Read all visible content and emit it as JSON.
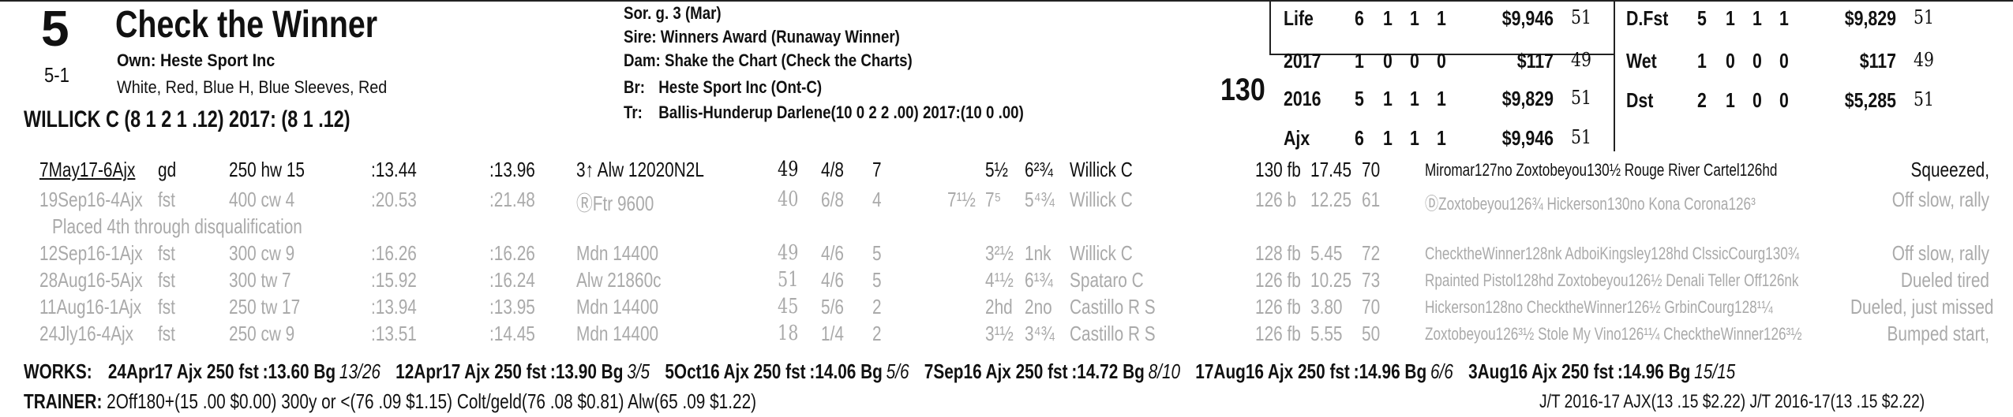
{
  "horse": {
    "program_number": "5",
    "odds": "5-1",
    "name": "Check the Winner",
    "owner": "Own: Heste Sport Inc",
    "silks": "White, Red, Blue H, Blue Sleeves, Red",
    "jockey_line": "WILLICK C (8 1 2 1 .12) 2017: (8 1 .12)"
  },
  "pedigree": {
    "sex_age": "Sor. g. 3 (Mar)",
    "sire_label": "Sire:",
    "sire": "Winners Award (Runaway Winner)",
    "dam_label": "Dam:",
    "dam": "Shake the Chart (Check the Charts)",
    "breeder_label": "Br:",
    "breeder": "Heste Sport Inc (Ont-C)",
    "trainer_label": "Tr:",
    "trainer": "Ballis-Hunderup Darlene(10 0 2 2 .00) 2017:(10 0 .00)"
  },
  "weight": "130",
  "stats_left": [
    {
      "label": "Life",
      "st": "6",
      "w": "1",
      "p": "1",
      "s": "1",
      "earn": "$9,946",
      "fig": "51"
    },
    {
      "label": "2017",
      "st": "1",
      "w": "0",
      "p": "0",
      "s": "0",
      "earn": "$117",
      "fig": "49"
    },
    {
      "label": "2016",
      "st": "5",
      "w": "1",
      "p": "1",
      "s": "1",
      "earn": "$9,829",
      "fig": "51"
    },
    {
      "label": "Ajx",
      "st": "6",
      "w": "1",
      "p": "1",
      "s": "1",
      "earn": "$9,946",
      "fig": "51"
    }
  ],
  "stats_right": [
    {
      "label": "D.Fst",
      "st": "5",
      "w": "1",
      "p": "1",
      "s": "1",
      "earn": "$9,829",
      "fig": "51"
    },
    {
      "label": "Wet",
      "st": "1",
      "w": "0",
      "p": "0",
      "s": "0",
      "earn": "$117",
      "fig": "49"
    },
    {
      "label": "Dst",
      "st": "2",
      "w": "1",
      "p": "0",
      "s": "0",
      "earn": "$5,285",
      "fig": "51"
    }
  ],
  "past_performances": [
    {
      "date": "7May17-6Ajx",
      "cond": "gd",
      "dist": "250 hw 15",
      "frac1": ":13.44",
      "frac2": ":13.96",
      "race": "3↑ Alw 12020N2L",
      "speed": "49",
      "post": "4/8",
      "start": "7",
      "call1": "5½",
      "fin": "6²¾",
      "jockey": "Willick C",
      "wt": "130 fb",
      "odds": "17.45",
      "fig": "70",
      "comp": "Miromar127no Zoxtobeyou130½ Rouge River Cartel126hd",
      "comment": "Squeezed,"
    },
    {
      "date": "19Sep16-4Ajx",
      "cond": "fst",
      "dist": "400 cw 4",
      "frac1": ":20.53",
      "frac2": ":21.48",
      "race": "ⓇFtr 9600",
      "speed": "40",
      "post": "6/8",
      "start": "4",
      "call0": "7¹½",
      "call1": "7⁵",
      "fin": "5⁴¾",
      "jockey": "Willick C",
      "wt": "126 b",
      "odds": "12.25",
      "fig": "61",
      "comp": "ⒹZoxtobeyou126¾ Hickerson130no Kona Corona126³",
      "comment": "Off slow, rally"
    },
    {
      "note": "Placed 4th through disqualification"
    },
    {
      "date": "12Sep16-1Ajx",
      "cond": "fst",
      "dist": "300 cw 9",
      "frac1": ":16.26",
      "frac2": ":16.26",
      "race": "Mdn 14400",
      "speed": "49",
      "post": "4/6",
      "start": "5",
      "call1": "3²½",
      "fin": "1nk",
      "jockey": "Willick C",
      "wt": "128 fb",
      "odds": "5.45",
      "fig": "72",
      "comp": "ChecktheWinner128nk AdboiKingsley128hd ClssicCourg130¾",
      "comment": "Off slow, rally"
    },
    {
      "date": "28Aug16-5Ajx",
      "cond": "fst",
      "dist": "300 tw 7",
      "frac1": ":15.92",
      "frac2": ":16.24",
      "race": "Alw 21860c",
      "speed": "51",
      "post": "4/6",
      "start": "5",
      "call1": "4¹½",
      "fin": "6¹¾",
      "jockey": "Spataro C",
      "wt": "126 fb",
      "odds": "10.25",
      "fig": "73",
      "comp": "Rpainted Pistol128hd Zoxtobeyou126½ Denali Teller Off126nk",
      "comment": "Dueled tired"
    },
    {
      "date": "11Aug16-1Ajx",
      "cond": "fst",
      "dist": "250 tw 17",
      "frac1": ":13.94",
      "frac2": ":13.95",
      "race": "Mdn 14400",
      "speed": "45",
      "post": "5/6",
      "start": "2",
      "call1": "2hd",
      "fin": "2no",
      "jockey": "Castillo R S",
      "wt": "126 fb",
      "odds": "3.80",
      "fig": "70",
      "comp": "Hickerson128no ChecktheWinner126½ GrbinCourg128¹¼",
      "comment": "Dueled, just missed"
    },
    {
      "date": "24Jly16-4Ajx",
      "cond": "fst",
      "dist": "250 cw 9",
      "frac1": ":13.51",
      "frac2": ":14.45",
      "race": "Mdn 14400",
      "speed": "18",
      "post": "1/4",
      "start": "2",
      "call1": "3¹½",
      "fin": "3⁴¾",
      "jockey": "Castillo R S",
      "wt": "126 fb",
      "odds": "5.55",
      "fig": "50",
      "comp": "Zoxtobeyou126³½ Stole My Vino126¹¼ ChecktheWinner126³½",
      "comment": "Bumped start,"
    }
  ],
  "works_label": "WORKS:",
  "works": [
    {
      "date": "24Apr17",
      "track": "Ajx 250 fst",
      "time": ":13.60 Bg",
      "rank": "13/26"
    },
    {
      "date": "12Apr17",
      "track": "Ajx 250 fst",
      "time": ":13.90 Bg",
      "rank": "3/5"
    },
    {
      "date": "5Oct16",
      "track": "Ajx 250 fst",
      "time": ":14.06 Bg",
      "rank": "5/6"
    },
    {
      "date": "7Sep16",
      "track": "Ajx 250 fst",
      "time": ":14.72 Bg",
      "rank": "8/10"
    },
    {
      "date": "17Aug16",
      "track": "Ajx 250 fst",
      "time": ":14.96 Bg",
      "rank": "6/6"
    },
    {
      "date": "3Aug16",
      "track": "Ajx 250 fst",
      "time": ":14.96 Bg",
      "rank": "15/15"
    }
  ],
  "trainer_stats": {
    "label": "TRAINER:",
    "text": "2Off180+(15 .00 $0.00) 300y or <(76 .09 $1.15) Colt/geld(76 .08 $0.81) Alw(65 .09 $1.22)",
    "jt": "J/T 2016-17 AJX(13 .15 $2.22)  J/T 2016-17(13 .15 $2.22)"
  }
}
